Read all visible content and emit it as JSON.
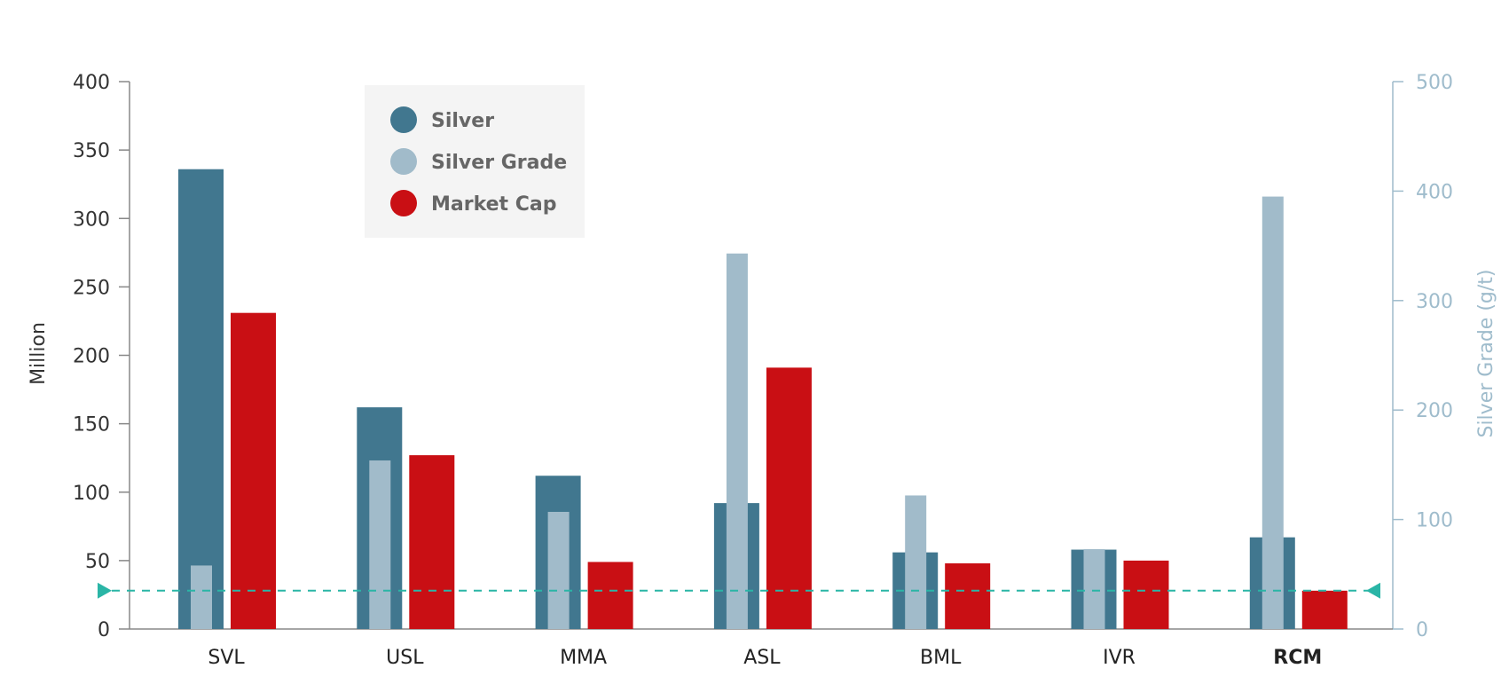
{
  "chart_data": {
    "type": "bar",
    "categories": [
      "SVL",
      "USL",
      "MMA",
      "ASL",
      "BML",
      "IVR",
      "RCM"
    ],
    "highlight_category": "RCM",
    "series": [
      {
        "name": "Silver",
        "axis": "left",
        "color": "#41778f",
        "values": [
          336,
          162,
          112,
          92,
          56,
          58,
          67
        ]
      },
      {
        "name": "Silver Grade",
        "axis": "right",
        "color": "#a1bbca",
        "values": [
          58,
          154,
          107,
          343,
          122,
          73,
          395
        ]
      },
      {
        "name": "Market Cap",
        "axis": "left",
        "color": "#c90f14",
        "values": [
          231,
          127,
          49,
          191,
          48,
          50,
          28
        ]
      }
    ],
    "reference_line": {
      "axis": "left",
      "value": 28,
      "color": "#2ab5a6",
      "style": "dashed"
    },
    "y_left": {
      "label": "Million",
      "range": [
        0,
        400
      ],
      "ticks": [
        0,
        50,
        100,
        150,
        200,
        250,
        300,
        350,
        400
      ]
    },
    "y_right": {
      "label": "Silver Grade (g/t)",
      "range": [
        0,
        500
      ],
      "ticks": [
        0,
        100,
        200,
        300,
        400,
        500
      ],
      "color": "#9fbccc"
    },
    "legend": {
      "position": "top-left",
      "background": "#f4f4f4"
    },
    "grid": false
  }
}
